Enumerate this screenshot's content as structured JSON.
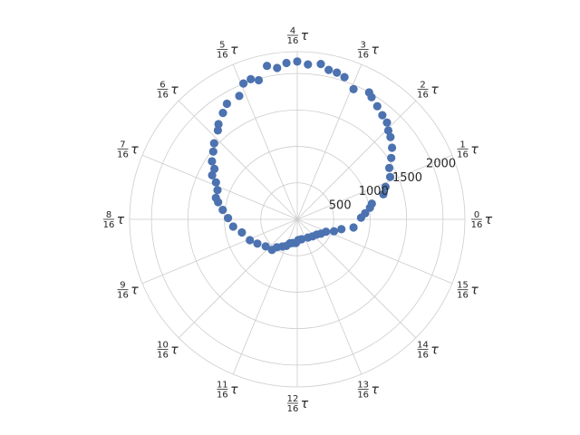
{
  "chart_data": {
    "type": "scatter",
    "projection": "polar",
    "theta_unit": "tau",
    "theta_ticks": [
      {
        "num": "0",
        "den": "16",
        "sym": "τ"
      },
      {
        "num": "1",
        "den": "16",
        "sym": "τ"
      },
      {
        "num": "2",
        "den": "16",
        "sym": "τ"
      },
      {
        "num": "3",
        "den": "16",
        "sym": "τ"
      },
      {
        "num": "4",
        "den": "16",
        "sym": "τ"
      },
      {
        "num": "5",
        "den": "16",
        "sym": "τ"
      },
      {
        "num": "6",
        "den": "16",
        "sym": "τ"
      },
      {
        "num": "7",
        "den": "16",
        "sym": "τ"
      },
      {
        "num": "8",
        "den": "16",
        "sym": "τ"
      },
      {
        "num": "9",
        "den": "16",
        "sym": "τ"
      },
      {
        "num": "10",
        "den": "16",
        "sym": "τ"
      },
      {
        "num": "11",
        "den": "16",
        "sym": "τ"
      },
      {
        "num": "12",
        "den": "16",
        "sym": "τ"
      },
      {
        "num": "13",
        "den": "16",
        "sym": "τ"
      },
      {
        "num": "14",
        "den": "16",
        "sym": "τ"
      },
      {
        "num": "15",
        "den": "16",
        "sym": "τ"
      }
    ],
    "r_ticks": [
      500,
      1000,
      1500,
      2000
    ],
    "r_tick_labels": [
      "500",
      "1000",
      "1500",
      "2000"
    ],
    "rlim": [
      0,
      2300
    ],
    "grid": true,
    "series": [
      {
        "color": "#4c72b0",
        "points": [
          {
            "theta": 0.25,
            "r": 2165
          },
          {
            "theta": 0.226,
            "r": 2155
          },
          {
            "theta": 0.239,
            "r": 2130
          },
          {
            "theta": 0.217,
            "r": 2095
          },
          {
            "theta": 0.208,
            "r": 2085
          },
          {
            "theta": 0.199,
            "r": 2055
          },
          {
            "theta": 0.185,
            "r": 1945
          },
          {
            "theta": 0.168,
            "r": 2000
          },
          {
            "theta": 0.163,
            "r": 1960
          },
          {
            "theta": 0.152,
            "r": 1900
          },
          {
            "theta": 0.141,
            "r": 1845
          },
          {
            "theta": 0.131,
            "r": 1810
          },
          {
            "theta": 0.123,
            "r": 1745
          },
          {
            "theta": 0.115,
            "r": 1705
          },
          {
            "theta": 0.103,
            "r": 1630
          },
          {
            "theta": 0.092,
            "r": 1540
          },
          {
            "theta": 0.081,
            "r": 1445
          },
          {
            "theta": 0.068,
            "r": 1400
          },
          {
            "theta": 0.056,
            "r": 1290
          },
          {
            "theta": 0.045,
            "r": 1230
          },
          {
            "theta": 0.033,
            "r": 1045
          },
          {
            "theta": 0.025,
            "r": 1010
          },
          {
            "theta": 0.014,
            "r": 935
          },
          {
            "theta": 0.004,
            "r": 875
          },
          {
            "theta": 0.977,
            "r": 780
          },
          {
            "theta": 0.965,
            "r": 620
          },
          {
            "theta": 0.95,
            "r": 530
          },
          {
            "theta": 0.935,
            "r": 430
          },
          {
            "theta": 0.913,
            "r": 380
          },
          {
            "theta": 0.895,
            "r": 340
          },
          {
            "theta": 0.867,
            "r": 315
          },
          {
            "theta": 0.835,
            "r": 290
          },
          {
            "theta": 0.784,
            "r": 280
          },
          {
            "theta": 0.758,
            "r": 285
          },
          {
            "theta": 0.741,
            "r": 325
          },
          {
            "theta": 0.72,
            "r": 330
          },
          {
            "theta": 0.703,
            "r": 345
          },
          {
            "theta": 0.688,
            "r": 395
          },
          {
            "theta": 0.67,
            "r": 425
          },
          {
            "theta": 0.65,
            "r": 475
          },
          {
            "theta": 0.64,
            "r": 545
          },
          {
            "theta": 0.613,
            "r": 570
          },
          {
            "theta": 0.587,
            "r": 640
          },
          {
            "theta": 0.566,
            "r": 710
          },
          {
            "theta": 0.537,
            "r": 780
          },
          {
            "theta": 0.518,
            "r": 885
          },
          {
            "theta": 0.497,
            "r": 950
          },
          {
            "theta": 0.48,
            "r": 1030
          },
          {
            "theta": 0.466,
            "r": 1110
          },
          {
            "theta": 0.459,
            "r": 1155
          },
          {
            "theta": 0.444,
            "r": 1165
          },
          {
            "theta": 0.432,
            "r": 1225
          },
          {
            "theta": 0.424,
            "r": 1315
          },
          {
            "theta": 0.413,
            "r": 1330
          },
          {
            "theta": 0.405,
            "r": 1415
          },
          {
            "theta": 0.392,
            "r": 1480
          },
          {
            "theta": 0.382,
            "r": 1545
          },
          {
            "theta": 0.366,
            "r": 1635
          },
          {
            "theta": 0.36,
            "r": 1695
          },
          {
            "theta": 0.347,
            "r": 1780
          },
          {
            "theta": 0.337,
            "r": 1855
          },
          {
            "theta": 0.32,
            "r": 1870
          },
          {
            "theta": 0.31,
            "r": 2005
          },
          {
            "theta": 0.301,
            "r": 2025
          },
          {
            "theta": 0.281,
            "r": 2145
          },
          {
            "theta": 0.271,
            "r": 2095
          },
          {
            "theta": 0.261,
            "r": 2150
          },
          {
            "theta": 0.293,
            "r": 1980
          }
        ]
      }
    ]
  }
}
